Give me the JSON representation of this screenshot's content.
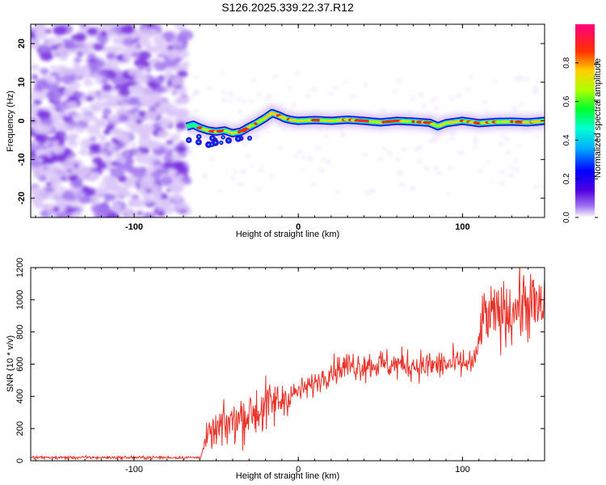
{
  "title": "S126.2025.339.22.37.R12",
  "chart_data": [
    {
      "type": "heatmap",
      "title": "S126.2025.339.22.37.R12",
      "xlabel": "Height of straight line (km)",
      "ylabel": "Frequency (Hz)",
      "xlim": [
        -163,
        150
      ],
      "ylim": [
        -25,
        25
      ],
      "xticks": [
        -100,
        0,
        100
      ],
      "yticks": [
        20,
        10,
        0,
        -10,
        -20
      ],
      "grid": false,
      "noise_region_x": [
        -163,
        -68
      ],
      "signal_region_x": [
        -68,
        150
      ],
      "ridge": {
        "x": [
          -68,
          -64,
          -60,
          -55,
          -50,
          -45,
          -40,
          -35,
          -30,
          -25,
          -20,
          -16,
          -12,
          -8,
          -4,
          0,
          10,
          20,
          30,
          40,
          50,
          60,
          70,
          80,
          85,
          90,
          100,
          110,
          120,
          130,
          140,
          150
        ],
        "y": [
          -1.5,
          -1.0,
          -1.8,
          -2.5,
          -2.8,
          -2.5,
          -3.2,
          -2.8,
          -1.6,
          -0.5,
          0.8,
          2.0,
          1.4,
          0.6,
          0.2,
          0.0,
          0.2,
          0.0,
          0.3,
          0.0,
          -0.4,
          0.0,
          -0.2,
          -0.5,
          -1.4,
          -0.6,
          0.0,
          -0.6,
          -0.3,
          -0.2,
          -0.4,
          0.0
        ]
      },
      "colorbar": {
        "label": "Normalized spectral amplitude",
        "range": [
          0.0,
          1.0
        ],
        "ticks": [
          "0.0",
          "0.2",
          "0.4",
          "0.6",
          "0.8"
        ],
        "colors": [
          "#ffffff",
          "#8a2be2",
          "#1e00ff",
          "#00e5ff",
          "#00ff40",
          "#c8ff00",
          "#ffb000",
          "#ff0000",
          "#ff0080"
        ]
      }
    },
    {
      "type": "line",
      "xlabel": "Height of straight line (km)",
      "ylabel": "SNR (10 * v/v)",
      "xlim": [
        -163,
        150
      ],
      "ylim": [
        0,
        1200
      ],
      "xticks": [
        -100,
        0,
        100
      ],
      "yticks": [
        0,
        200,
        400,
        600,
        800,
        1000,
        1200
      ],
      "grid": false,
      "series": [
        {
          "name": "SNR",
          "color": "#e8332a",
          "trend_x": [
            -163,
            -60,
            -55,
            -40,
            -20,
            0,
            10,
            20,
            30,
            50,
            80,
            108,
            112,
            120,
            130,
            140,
            150
          ],
          "trend_y": [
            20,
            20,
            150,
            250,
            330,
            430,
            480,
            560,
            590,
            600,
            590,
            610,
            880,
            900,
            940,
            980,
            920
          ],
          "noise_y": [
            6,
            6,
            60,
            90,
            110,
            45,
            45,
            50,
            60,
            60,
            60,
            60,
            110,
            120,
            130,
            140,
            140
          ]
        }
      ]
    }
  ]
}
